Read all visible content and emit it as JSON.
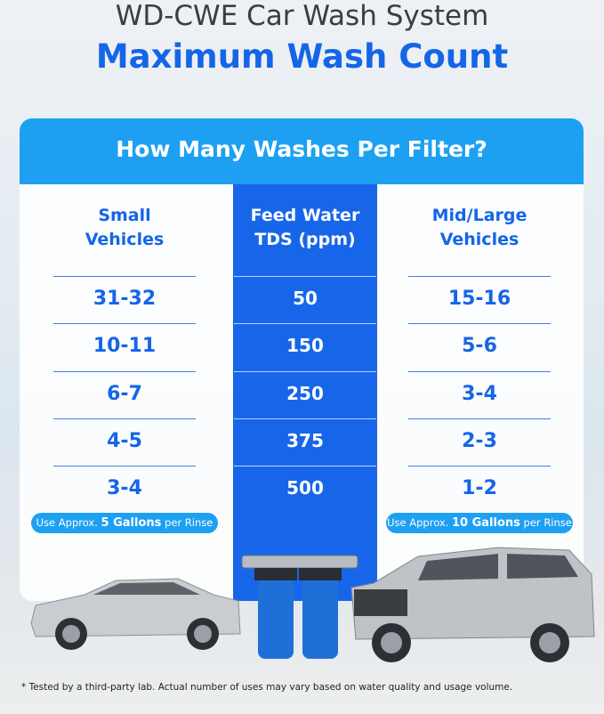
{
  "header": {
    "title": "WD-CWE Car Wash System",
    "subtitle": "Maximum Wash Count"
  },
  "table": {
    "title": "How Many Washes Per Filter?",
    "columns": [
      "Small Vehicles",
      "Feed Water TDS (ppm)",
      "Mid/Large Vehicles"
    ],
    "rows": [
      [
        "31-32",
        50,
        "15-16"
      ],
      [
        "10-11",
        150,
        "5-6"
      ],
      [
        "6-7",
        250,
        "3-4"
      ],
      [
        "4-5",
        375,
        "2-3"
      ],
      [
        "3-4",
        500,
        "1-2"
      ]
    ],
    "notes": [
      [
        "Use Approx. ",
        "5 Gallons",
        " per Rinse"
      ],
      [
        "Use Approx. ",
        "10 Gallons",
        " per Rinse"
      ]
    ]
  },
  "footnote": "* Tested by a third-party lab. Actual number of uses may vary based on water quality and usage volume."
}
